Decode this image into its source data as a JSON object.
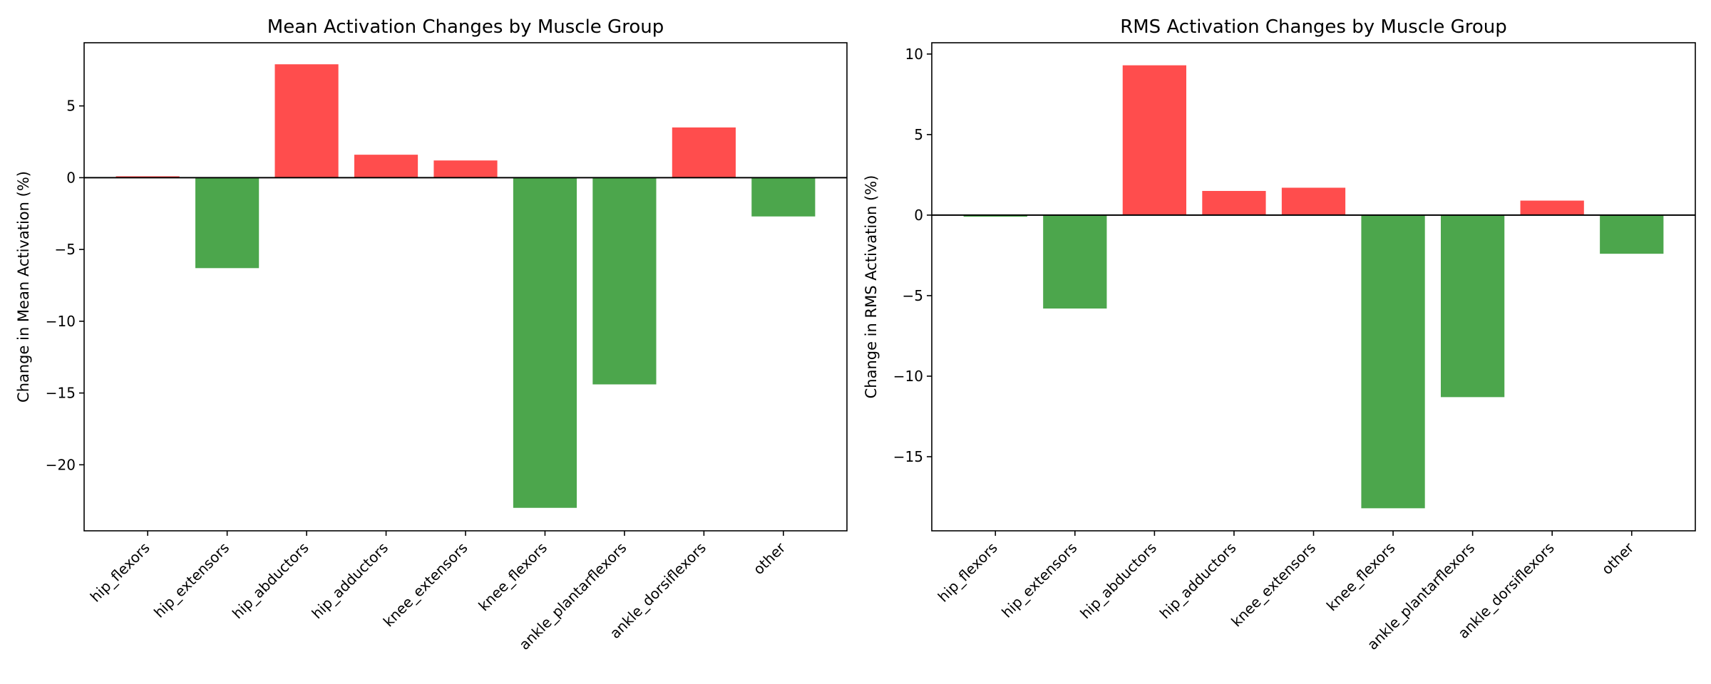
{
  "colors": {
    "increase": "#ff4d4d",
    "decrease": "#4ca64c",
    "axis": "#000000"
  },
  "chart_data": [
    {
      "type": "bar",
      "title": "Mean Activation Changes by Muscle Group",
      "xlabel": "",
      "ylabel": "Change in Mean Activation (%)",
      "categories": [
        "hip_flexors",
        "hip_extensors",
        "hip_abductors",
        "hip_adductors",
        "knee_extensors",
        "knee_flexors",
        "ankle_plantarflexors",
        "ankle_dorsiflexors",
        "other"
      ],
      "values": [
        0.1,
        -6.3,
        7.9,
        1.6,
        1.2,
        -23.0,
        -14.4,
        3.5,
        -2.7
      ],
      "ylim": [
        -24.6,
        9.4
      ],
      "yticks": [
        5,
        0,
        -5,
        -10,
        -15,
        -20
      ],
      "ytick_labels": [
        "5",
        "0",
        "−5",
        "−10",
        "−15",
        "−20"
      ],
      "grid": false
    },
    {
      "type": "bar",
      "title": "RMS Activation Changes by Muscle Group",
      "xlabel": "",
      "ylabel": "Change in RMS Activation (%)",
      "categories": [
        "hip_flexors",
        "hip_extensors",
        "hip_abductors",
        "hip_adductors",
        "knee_extensors",
        "knee_flexors",
        "ankle_plantarflexors",
        "ankle_dorsiflexors",
        "other"
      ],
      "values": [
        -0.1,
        -5.8,
        9.3,
        1.5,
        1.7,
        -18.2,
        -11.3,
        0.9,
        -2.4
      ],
      "ylim": [
        -19.6,
        10.7
      ],
      "yticks": [
        10,
        5,
        0,
        -5,
        -10,
        -15
      ],
      "ytick_labels": [
        "10",
        "5",
        "0",
        "−5",
        "−10",
        "−15"
      ],
      "grid": false
    }
  ]
}
